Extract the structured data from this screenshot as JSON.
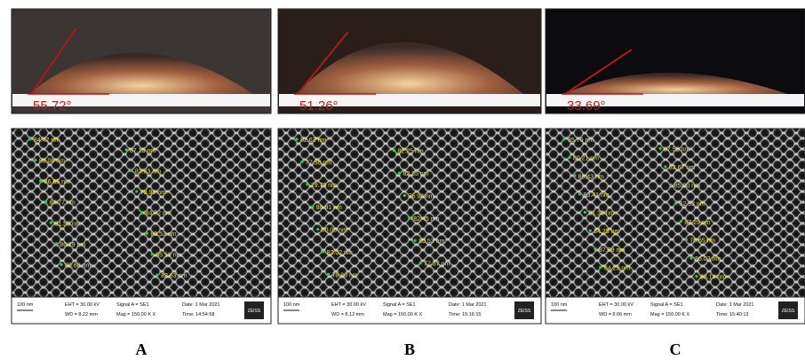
{
  "panels": [
    {
      "label": "A",
      "contact_angle": "55.72°",
      "sem": {
        "measurements": [
          "84.42 nm",
          "87.18 nm",
          "80.06 nm",
          "83.63 nm",
          "86.65 nm",
          "79.99 nm",
          "84.77 nm",
          "84.72 nm",
          "81.59 nm",
          "80.53 nm",
          "86.29 nm",
          "85.16 nm",
          "80.60 nm",
          "82.63 nm"
        ],
        "info": {
          "scale": "100 nm",
          "eht": "EHT = 30.00 kV",
          "wd": "WD = 8.22 mm",
          "signal": "Signal A = SE1",
          "mag": "Mag = 150.00 K X",
          "date": "Date: 1 Mar 2021",
          "time": "Time: 14:54:58",
          "logo": "ZEISS"
        }
      }
    },
    {
      "label": "B",
      "contact_angle": "51.26°",
      "sem": {
        "measurements": [
          "82.63 nm",
          "82.25 nm",
          "77.58 nm",
          "82.35 nm",
          "79.75 nm",
          "76.93 nm",
          "80.91 nm",
          "82.45 nm",
          "80.00 nm",
          "80.53 nm",
          "82.02 nm",
          "77.37 nm",
          "78.80 nm"
        ],
        "info": {
          "scale": "100 nm",
          "eht": "EHT = 30.00 kV",
          "wd": "WD = 8.12 mm",
          "signal": "Signal A = SE1",
          "mag": "Mag = 150.00 K X",
          "date": "Date: 1 Mar 2021",
          "time": "Time: 15:16:15",
          "logo": "ZEISS"
        }
      }
    },
    {
      "label": "C",
      "contact_angle": "33.69°",
      "sem": {
        "measurements": [
          "85.70 nm",
          "87.52 nm",
          "80.21 nm",
          "83.67 nm",
          "88.43 nm",
          "85.90 nm",
          "83.41 nm",
          "82.92 nm",
          "81.30 nm",
          "87.29 nm",
          "84.29 nm",
          "78.65 nm",
          "87.99 nm",
          "86.03 nm",
          "84.29 nm",
          "83.14 nm"
        ],
        "info": {
          "scale": "100 nm",
          "eht": "EHT = 30.00 kV",
          "wd": "WD = 8.06 mm",
          "signal": "Signal A = SE1",
          "mag": "Mag = 150.00 K X",
          "date": "Date: 1 Mar 2021",
          "time": "Time: 15:40:13",
          "logo": "ZEISS"
        }
      }
    }
  ]
}
